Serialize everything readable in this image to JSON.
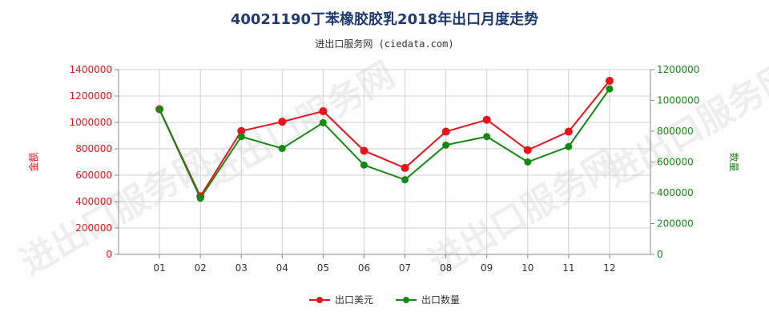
{
  "chart_data": {
    "type": "line",
    "title": "40021190丁苯橡胶胶乳2018年出口月度走势",
    "subtitle": "进出口服务网 (ciedata.com)",
    "categories": [
      "01",
      "02",
      "03",
      "04",
      "05",
      "06",
      "07",
      "08",
      "09",
      "10",
      "11",
      "12"
    ],
    "series": [
      {
        "name": "出口美元",
        "axis": "left",
        "color": "#e8141b",
        "values": [
          1100000,
          440000,
          935000,
          1005000,
          1085000,
          785000,
          655000,
          930000,
          1020000,
          790000,
          930000,
          1315000
        ]
      },
      {
        "name": "出口数量",
        "axis": "right",
        "color": "#138a13",
        "values": [
          940000,
          365000,
          765000,
          688000,
          855000,
          580000,
          485000,
          710000,
          765000,
          600000,
          700000,
          1075000
        ]
      }
    ],
    "left_axis": {
      "label": "金额",
      "ylim": [
        0,
        1400000
      ],
      "ticks": [
        0,
        200000,
        400000,
        600000,
        800000,
        1000000,
        1200000,
        1400000
      ],
      "color": "#e8141b"
    },
    "right_axis": {
      "label": "数量",
      "ylim": [
        0,
        1200000
      ],
      "ticks": [
        0,
        200000,
        400000,
        600000,
        800000,
        1000000,
        1200000
      ],
      "color": "#138a13"
    },
    "grid": true,
    "legend_position": "bottom-center"
  },
  "watermark": "进出口服务网"
}
